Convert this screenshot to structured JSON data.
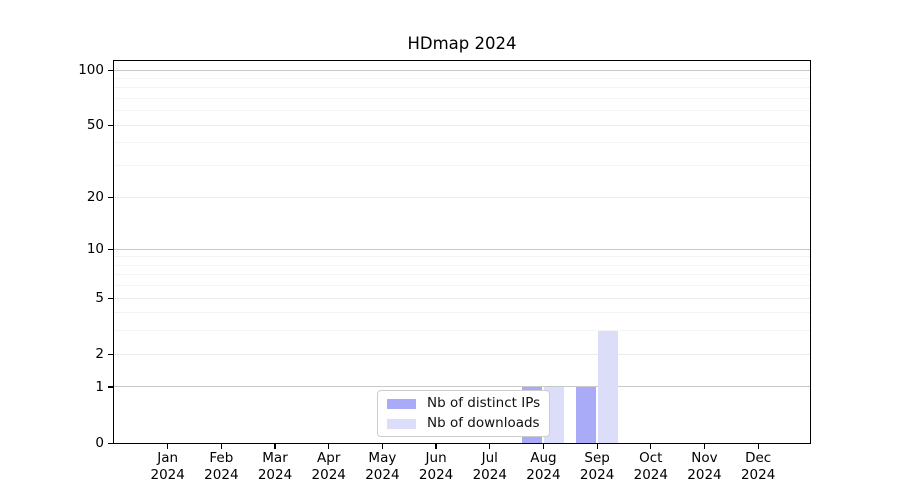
{
  "chart_data": {
    "type": "bar",
    "title": "HDmap 2024",
    "categories": [
      "Jan 2024",
      "Feb 2024",
      "Mar 2024",
      "Apr 2024",
      "May 2024",
      "Jun 2024",
      "Jul 2024",
      "Aug 2024",
      "Sep 2024",
      "Oct 2024",
      "Nov 2024",
      "Dec 2024"
    ],
    "series": [
      {
        "name": "Nb of distinct IPs",
        "color": "#a9aaf8",
        "values": [
          0,
          0,
          0,
          0,
          0,
          0,
          0,
          1,
          1,
          0,
          0,
          0
        ]
      },
      {
        "name": "Nb of downloads",
        "color": "#dcddf8",
        "values": [
          0,
          0,
          0,
          0,
          0,
          0,
          0,
          1,
          3,
          0,
          0,
          0
        ]
      }
    ],
    "y_axis": {
      "scale": "symlog-log1p",
      "ticks": [
        0,
        1,
        2,
        5,
        10,
        20,
        50,
        100
      ],
      "minor_ticks": [
        3,
        4,
        6,
        7,
        8,
        9,
        30,
        40,
        60,
        70,
        80,
        90
      ],
      "ylim": [
        0,
        110
      ]
    },
    "xlabel": "",
    "ylabel": "",
    "grid": {
      "major_color": "#c9c9c9",
      "mid_color": "#ececec",
      "minor_color": "#f3f3f3"
    },
    "axis_color": "#000000",
    "legend": {
      "position": "bottom-center",
      "border_color": "#cccccc",
      "background": "#ffffff"
    }
  }
}
